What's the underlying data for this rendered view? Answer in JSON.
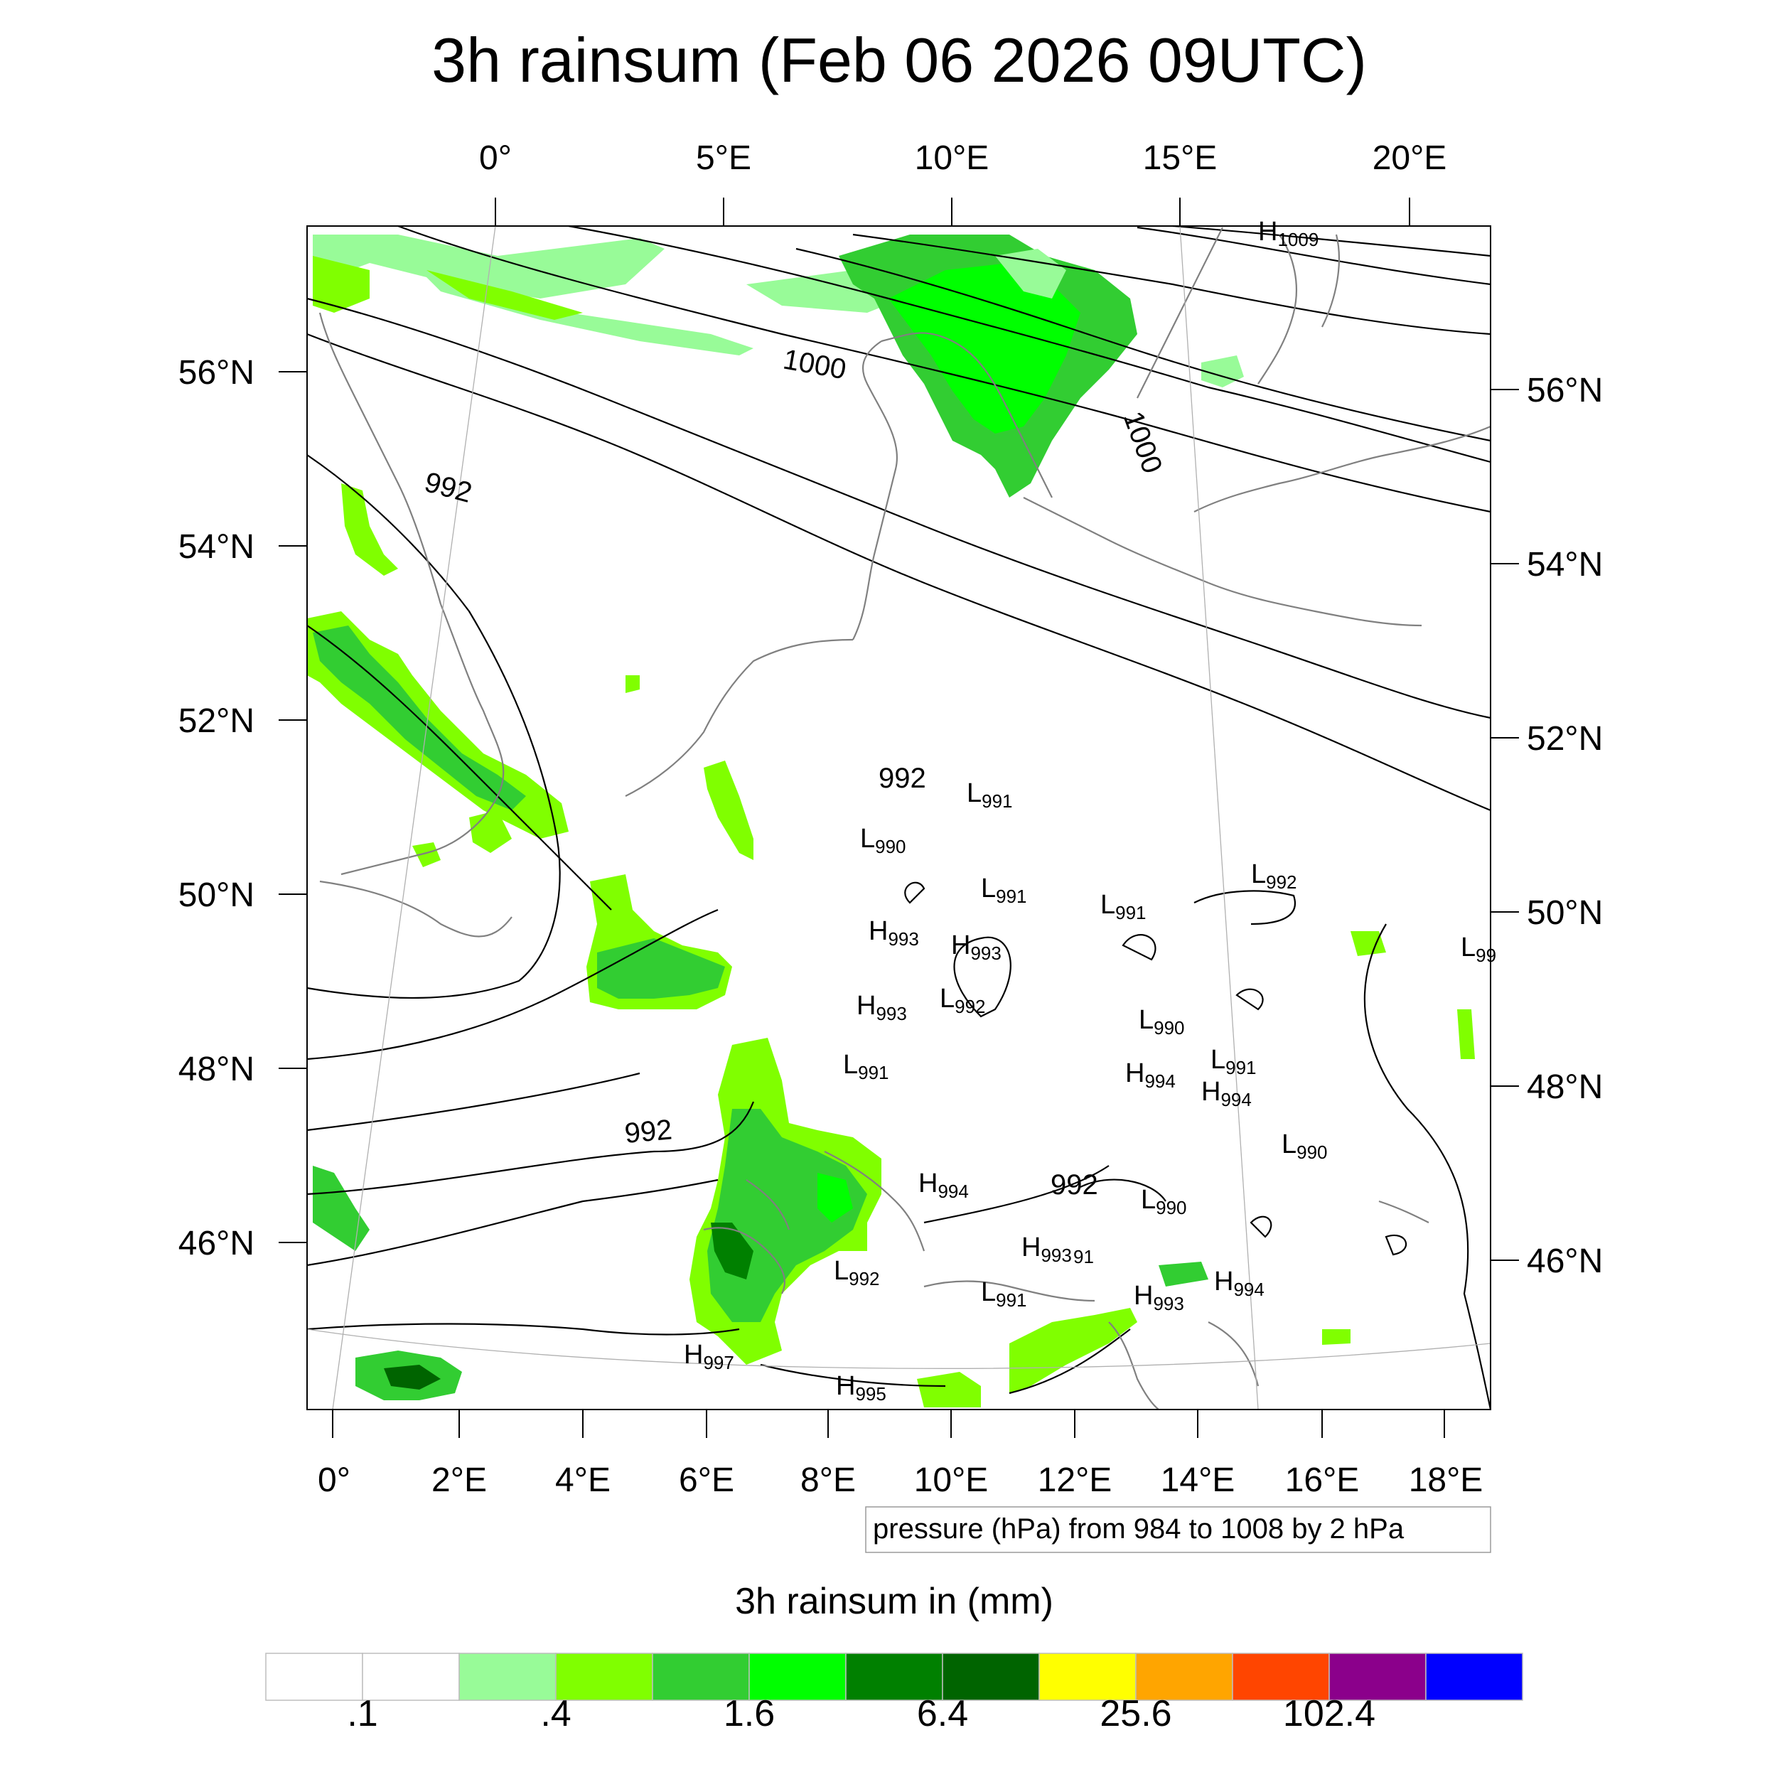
{
  "title": "3h rainsum (Feb 06 2026 09UTC)",
  "top_lon_labels": [
    "0°",
    "5°E",
    "10°E",
    "15°E",
    "20°E"
  ],
  "bottom_lon_labels": [
    "0°",
    "2°E",
    "4°E",
    "6°E",
    "8°E",
    "10°E",
    "12°E",
    "14°E",
    "16°E",
    "18°E"
  ],
  "left_lat_labels": [
    "56°N",
    "54°N",
    "52°N",
    "50°N",
    "48°N",
    "46°N"
  ],
  "right_lat_labels": [
    "56°N",
    "54°N",
    "52°N",
    "50°N",
    "48°N",
    "46°N"
  ],
  "contour_info": "pressure (hPa) from 984 to 1008 by 2 hPa",
  "colorbar": {
    "title": "3h rainsum in (mm)",
    "colors": [
      "#ffffff",
      "#ffffff",
      "#98fb98",
      "#80ff00",
      "#32cd32",
      "#00ff00",
      "#008000",
      "#006400",
      "#ffff00",
      "#ffa500",
      "#ff4500",
      "#8b008b",
      "#0000ff"
    ],
    "tick_labels": [
      ".1",
      ".4",
      "1.6",
      "6.4",
      "25.6",
      "102.4"
    ]
  },
  "contour_labels": [
    "1000",
    "1000",
    "992",
    "992",
    "992",
    "992"
  ],
  "pressure_centers": [
    {
      "type": "H",
      "value": "1009"
    },
    {
      "type": "L",
      "value": "991"
    },
    {
      "type": "L",
      "value": "990"
    },
    {
      "type": "L",
      "value": "991"
    },
    {
      "type": "L",
      "value": "991"
    },
    {
      "type": "L",
      "value": "992"
    },
    {
      "type": "H",
      "value": "993"
    },
    {
      "type": "H",
      "value": "993"
    },
    {
      "type": "H",
      "value": "993"
    },
    {
      "type": "L",
      "value": "992"
    },
    {
      "type": "L",
      "value": "990"
    },
    {
      "type": "L",
      "value": "991"
    },
    {
      "type": "H",
      "value": "994"
    },
    {
      "type": "H",
      "value": "994"
    },
    {
      "type": "L",
      "value": "991"
    },
    {
      "type": "L",
      "value": "990"
    },
    {
      "type": "H",
      "value": "994"
    },
    {
      "type": "L",
      "value": "990"
    },
    {
      "type": "H",
      "value": "993"
    },
    {
      "type": "L",
      "value": "992"
    },
    {
      "type": "L",
      "value": "991"
    },
    {
      "type": "H",
      "value": "993"
    },
    {
      "type": "H",
      "value": "994"
    },
    {
      "type": "H",
      "value": "997"
    },
    {
      "type": "H",
      "value": "995"
    },
    {
      "type": "L",
      "value": "99"
    }
  ],
  "stray_label": "91"
}
